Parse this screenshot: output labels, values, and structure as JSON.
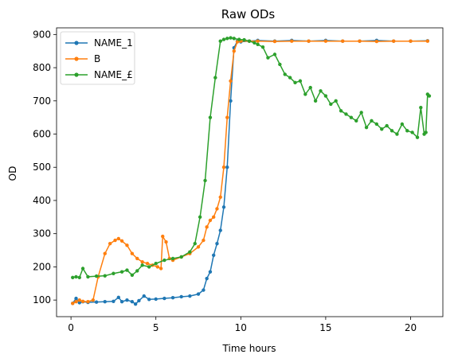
{
  "chart_data": {
    "type": "line",
    "title": "Raw ODs",
    "xlabel": "Time hours",
    "ylabel": "OD",
    "xlim": [
      -0.85,
      21.9
    ],
    "ylim": [
      50,
      920
    ],
    "xticks": [
      0,
      5,
      10,
      15,
      20
    ],
    "yticks": [
      100,
      200,
      300,
      400,
      500,
      600,
      700,
      800,
      900
    ],
    "grid": false,
    "legend_position": "top-left",
    "series": [
      {
        "name": "NAME_1",
        "color": "#1f77b4",
        "x": [
          0.1,
          0.3,
          0.5,
          0.7,
          1.0,
          1.5,
          2.0,
          2.5,
          2.8,
          3.0,
          3.3,
          3.6,
          3.8,
          4.0,
          4.3,
          4.6,
          5.0,
          5.5,
          6.0,
          6.5,
          7.0,
          7.5,
          7.8,
          8.0,
          8.2,
          8.4,
          8.6,
          8.8,
          9.0,
          9.2,
          9.4,
          9.6,
          9.8,
          10.0,
          10.5,
          11.0,
          12.0,
          13.0,
          14.0,
          15.0,
          16.0,
          17.0,
          18.0,
          19.0,
          20.0,
          21.0
        ],
        "y": [
          90,
          105,
          92,
          95,
          93,
          94,
          95,
          96,
          108,
          95,
          100,
          95,
          88,
          98,
          112,
          102,
          103,
          105,
          107,
          110,
          112,
          118,
          130,
          165,
          185,
          235,
          270,
          310,
          380,
          500,
          700,
          860,
          880,
          878,
          880,
          882,
          880,
          882,
          880,
          882,
          880,
          880,
          882,
          880,
          880,
          881
        ]
      },
      {
        "name": "B",
        "color": "#ff7f0e",
        "x": [
          0.1,
          0.3,
          0.5,
          0.7,
          1.0,
          1.3,
          1.6,
          2.0,
          2.3,
          2.6,
          2.8,
          3.0,
          3.3,
          3.6,
          3.9,
          4.2,
          4.5,
          4.8,
          5.1,
          5.3,
          5.4,
          5.6,
          5.8,
          6.0,
          6.5,
          7.0,
          7.5,
          7.8,
          8.0,
          8.2,
          8.4,
          8.6,
          8.8,
          9.0,
          9.2,
          9.4,
          9.6,
          9.8,
          10.0,
          10.5,
          11.0,
          12.0,
          13.0,
          14.0,
          15.0,
          16.0,
          17.0,
          18.0,
          19.0,
          20.0,
          21.0
        ],
        "y": [
          90,
          95,
          100,
          96,
          95,
          100,
          170,
          240,
          270,
          280,
          285,
          278,
          265,
          240,
          225,
          215,
          210,
          205,
          200,
          195,
          292,
          275,
          225,
          220,
          230,
          240,
          260,
          280,
          320,
          340,
          350,
          375,
          410,
          500,
          650,
          760,
          850,
          878,
          880,
          880,
          880,
          879,
          880,
          880,
          880,
          880,
          880,
          879,
          880,
          880,
          880
        ]
      },
      {
        "name": "NAME_£",
        "color": "#2ca02c",
        "x": [
          0.1,
          0.3,
          0.5,
          0.7,
          1.0,
          1.5,
          2.0,
          2.5,
          3.0,
          3.3,
          3.6,
          3.9,
          4.2,
          4.6,
          5.0,
          5.5,
          6.0,
          6.5,
          7.0,
          7.3,
          7.6,
          7.9,
          8.2,
          8.5,
          8.8,
          9.0,
          9.2,
          9.4,
          9.6,
          9.9,
          10.2,
          10.5,
          10.8,
          11.0,
          11.3,
          11.6,
          12.0,
          12.3,
          12.6,
          12.9,
          13.2,
          13.5,
          13.8,
          14.1,
          14.4,
          14.7,
          15.0,
          15.3,
          15.6,
          15.9,
          16.2,
          16.5,
          16.8,
          17.1,
          17.4,
          17.7,
          18.0,
          18.3,
          18.6,
          18.9,
          19.2,
          19.5,
          19.8,
          20.1,
          20.4,
          20.6,
          20.8,
          20.9,
          21.0,
          21.1
        ],
        "y": [
          168,
          170,
          168,
          195,
          170,
          172,
          173,
          180,
          185,
          190,
          175,
          188,
          205,
          200,
          210,
          220,
          225,
          230,
          245,
          270,
          350,
          460,
          650,
          770,
          880,
          885,
          888,
          890,
          888,
          885,
          884,
          880,
          875,
          870,
          862,
          830,
          840,
          810,
          780,
          770,
          755,
          760,
          720,
          740,
          700,
          730,
          715,
          690,
          700,
          670,
          660,
          650,
          640,
          665,
          620,
          640,
          630,
          615,
          625,
          610,
          600,
          630,
          610,
          605,
          590,
          680,
          600,
          605,
          720,
          715
        ]
      }
    ]
  }
}
